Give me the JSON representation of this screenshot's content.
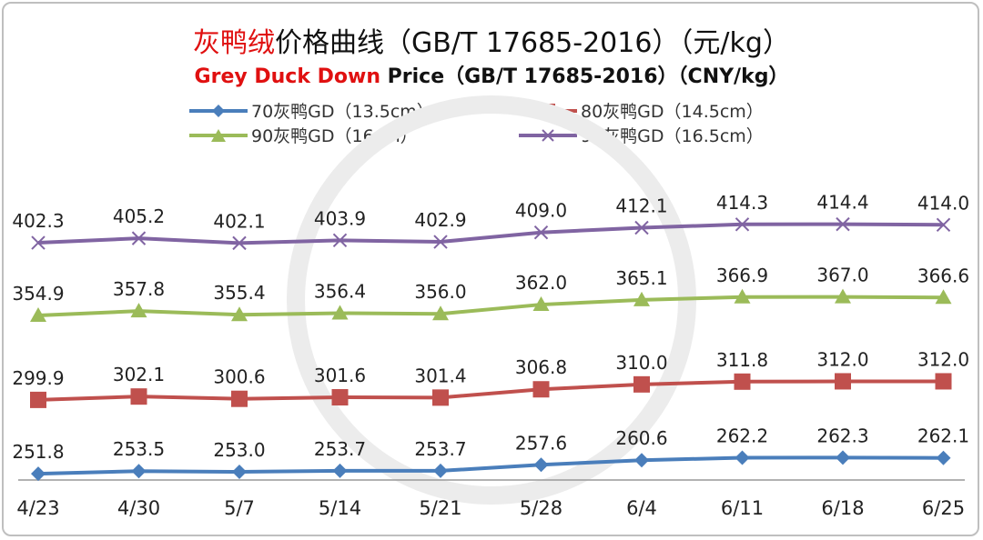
{
  "chart_data": {
    "type": "line",
    "title": {
      "red": "灰鸭绒",
      "rest": "价格曲线（GB/T 17685-2016）（元/kg）"
    },
    "subtitle": {
      "red": "Grey Duck Down",
      "rest": " Price（GB/T 17685-2016）（CNY/kg）"
    },
    "categories": [
      "4/23",
      "4/30",
      "5/7",
      "5/14",
      "5/21",
      "5/28",
      "6/4",
      "6/11",
      "6/18",
      "6/25"
    ],
    "series": [
      {
        "name": "70灰鸭GD（13.5cm）",
        "color": "#4a7ebb",
        "marker": "diamond",
        "values": [
          251.8,
          253.5,
          253.0,
          253.7,
          253.7,
          257.6,
          260.6,
          262.2,
          262.3,
          262.1
        ]
      },
      {
        "name": "80灰鸭GD（14.5cm）",
        "color": "#c0504d",
        "marker": "square",
        "values": [
          299.9,
          302.1,
          300.6,
          301.6,
          301.4,
          306.8,
          310.0,
          311.8,
          312.0,
          312.0
        ]
      },
      {
        "name": "90灰鸭GD（16cm）",
        "color": "#9bbb59",
        "marker": "triangle",
        "values": [
          354.9,
          357.8,
          355.4,
          356.4,
          356.0,
          362.0,
          365.1,
          366.9,
          367.0,
          366.6
        ]
      },
      {
        "name": "95灰鸭GD（16.5cm）",
        "color": "#8064a2",
        "marker": "x",
        "values": [
          402.3,
          405.2,
          402.1,
          403.9,
          402.9,
          409.0,
          412.1,
          414.3,
          414.4,
          414.0
        ]
      }
    ],
    "xlabel": "",
    "ylabel": "",
    "ylim": [
      247.7,
      430
    ],
    "grid": false,
    "legend": "top"
  }
}
